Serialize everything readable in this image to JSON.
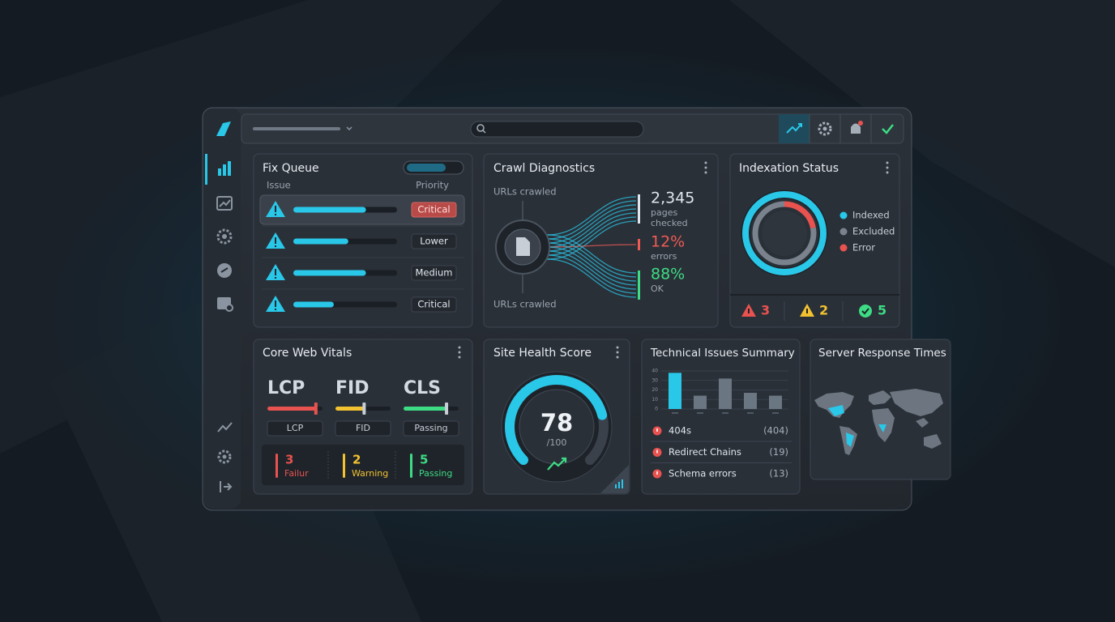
{
  "fix_queue": {
    "title": "Fix Queue",
    "columns": [
      "Issue",
      "Priority"
    ],
    "rows": [
      {
        "progress": 70,
        "priority": "Critical"
      },
      {
        "progress": 53,
        "priority": "Lower"
      },
      {
        "progress": 70,
        "priority": "Medium"
      },
      {
        "progress": 39,
        "priority": "Critical"
      }
    ]
  },
  "crawl_diagnostics": {
    "title": "Crawl Diagnostics",
    "label_top": "URLs crawled",
    "label_bottom": "URLs crawled",
    "stats": [
      {
        "value": "2,345",
        "label": "pages checked",
        "color": "#dfe6ee"
      },
      {
        "value": "12%",
        "label": "errors",
        "color": "#ef5b55"
      },
      {
        "value": "88%",
        "label": "OK",
        "color": "#3ddc84"
      }
    ]
  },
  "indexation_status": {
    "title": "Indexation Status",
    "outer": {
      "name": "Indexed",
      "value": 100,
      "color": "#29c7e8"
    },
    "inner": [
      {
        "name": "Error",
        "value": 22,
        "color": "#e8524f"
      },
      {
        "name": "Excluded",
        "value": 78,
        "color": "#7a838d"
      }
    ],
    "legend": [
      {
        "name": "Indexed",
        "color": "#29c7e8"
      },
      {
        "name": "Excluded",
        "color": "#7a838d"
      },
      {
        "name": "Error",
        "color": "#e8524f"
      }
    ],
    "counts": [
      {
        "kind": "error",
        "count": 3,
        "color": "#e8524f"
      },
      {
        "kind": "warning",
        "count": 2,
        "color": "#f2c230"
      },
      {
        "kind": "ok",
        "count": 5,
        "color": "#3ddc84"
      }
    ]
  },
  "core_web_vitals": {
    "title": "Core Web Vitals",
    "metrics": [
      {
        "name": "LCP",
        "level": 88,
        "badge": "LCP",
        "color": "#e8524f"
      },
      {
        "name": "FID",
        "level": 52,
        "badge": "FID",
        "color": "#f2c230"
      },
      {
        "name": "CLS",
        "level": 78,
        "badge": "Passing",
        "color": "#3ddc84"
      }
    ],
    "summary": [
      {
        "count": 3,
        "label": "Failur",
        "color": "#e8524f"
      },
      {
        "count": 2,
        "label": "Warning",
        "color": "#f2c230"
      },
      {
        "count": 5,
        "label": "Passing",
        "color": "#3ddc84"
      }
    ]
  },
  "site_health": {
    "title": "Site Health Score",
    "score": 78,
    "range": [
      0,
      100
    ],
    "max_label": "/100"
  },
  "technical_issues": {
    "title": "Technical Issues Summary",
    "chart": {
      "values": [
        38,
        14,
        32,
        17,
        14
      ],
      "colors": [
        "#29c7e8",
        "#6b7683",
        "#6b7683",
        "#6b7683",
        "#6b7683"
      ],
      "ylim": [
        0,
        40
      ],
      "yticks": [
        0,
        10,
        20,
        30,
        40
      ]
    },
    "issues": [
      {
        "name": "404s",
        "count": "(404)"
      },
      {
        "name": "Redirect Chains",
        "count": "(19)"
      },
      {
        "name": "Schema errors",
        "count": "(13)"
      }
    ]
  },
  "server_response": {
    "title": "Server Response Times"
  }
}
